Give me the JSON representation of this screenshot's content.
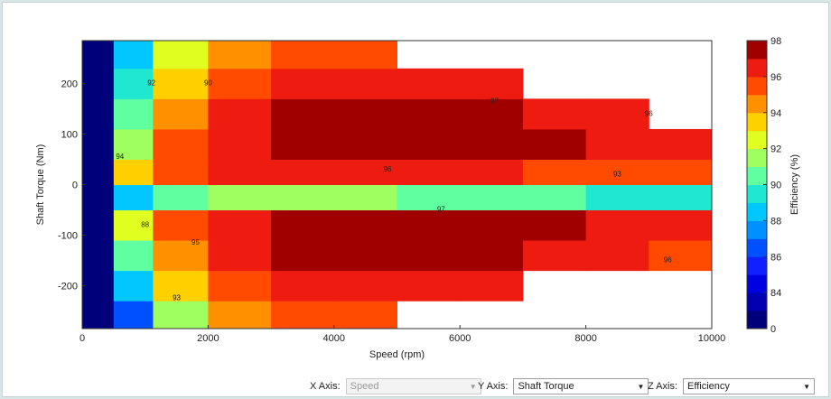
{
  "chart_data": {
    "type": "contour",
    "x_label": "Speed (rpm)",
    "y_label": "Shaft Torque (Nm)",
    "colorbar_label": "Efficiency (%)",
    "xlim": [
      0,
      10000
    ],
    "xticks": [
      0,
      2000,
      4000,
      6000,
      8000,
      10000
    ],
    "ylim": [
      -285,
      285
    ],
    "yticks": [
      -200,
      -100,
      0,
      100,
      200
    ],
    "x": [
      250,
      750,
      1500,
      2500,
      3500,
      4500,
      5500,
      6500,
      7500,
      8500,
      9500
    ],
    "y": [
      -260,
      -200,
      -140,
      -80,
      -20,
      20,
      80,
      140,
      200,
      260
    ],
    "z": [
      [
        0,
        86,
        91,
        94,
        95,
        95.5,
        null,
        null,
        null,
        null,
        null
      ],
      [
        0,
        88,
        93,
        95,
        96,
        96.5,
        96.5,
        96,
        null,
        null,
        null
      ],
      [
        0,
        90,
        94,
        96,
        97,
        97.5,
        97.5,
        97,
        96.5,
        96,
        95.5
      ],
      [
        0,
        92,
        95,
        96.5,
        97,
        97.5,
        97.5,
        97,
        97,
        96.5,
        96
      ],
      [
        0,
        88,
        90,
        91,
        91,
        91,
        90,
        90,
        90,
        89,
        89
      ],
      [
        0,
        93,
        95,
        96,
        96,
        96,
        96,
        96,
        95.5,
        95,
        95
      ],
      [
        0,
        91,
        95,
        96.5,
        97.5,
        97.5,
        97.5,
        97.5,
        97,
        96.5,
        96
      ],
      [
        0,
        90,
        94,
        96,
        97,
        97.5,
        97.5,
        97,
        96.5,
        96,
        null
      ],
      [
        0,
        89,
        93,
        95,
        96,
        96.5,
        96.5,
        96,
        null,
        null,
        null
      ],
      [
        0,
        88,
        92,
        94,
        95,
        95.5,
        null,
        null,
        null,
        null,
        null
      ]
    ],
    "levels": [
      0,
      83,
      84,
      85,
      86,
      87,
      88,
      89,
      90,
      91,
      92,
      93,
      94,
      95,
      96,
      97,
      98
    ],
    "colors": [
      "#00007a",
      "#0000b0",
      "#0000e0",
      "#1020ff",
      "#0050ff",
      "#0090ff",
      "#00c8ff",
      "#20e8d0",
      "#60ffa0",
      "#a0ff60",
      "#e0ff20",
      "#ffd000",
      "#ff9000",
      "#ff4a00",
      "#ee1c10",
      "#a00000"
    ],
    "colorbar_ticks": [
      0,
      84,
      86,
      88,
      90,
      92,
      94,
      96,
      98
    ],
    "contour_labels": [
      {
        "x": 6550,
        "y": 165,
        "value": 97
      },
      {
        "x": 9000,
        "y": 140,
        "value": 96
      },
      {
        "x": 4850,
        "y": 30,
        "value": 96
      },
      {
        "x": 5700,
        "y": -50,
        "value": 97
      },
      {
        "x": 9300,
        "y": -150,
        "value": 96
      },
      {
        "x": 8500,
        "y": 20,
        "value": 93
      },
      {
        "x": 1100,
        "y": 200,
        "value": 92
      },
      {
        "x": 2000,
        "y": 200,
        "value": 90
      },
      {
        "x": 600,
        "y": 55,
        "value": 94
      },
      {
        "x": 1800,
        "y": -115,
        "value": 95
      },
      {
        "x": 1000,
        "y": -80,
        "value": 88
      },
      {
        "x": 1500,
        "y": -225,
        "value": 93
      }
    ]
  },
  "controls": [
    {
      "label": "X Axis:",
      "value": "Speed"
    },
    {
      "label": "Y Axis:",
      "value": "Shaft Torque"
    },
    {
      "label": "Z Axis:",
      "value": "Efficiency"
    }
  ]
}
